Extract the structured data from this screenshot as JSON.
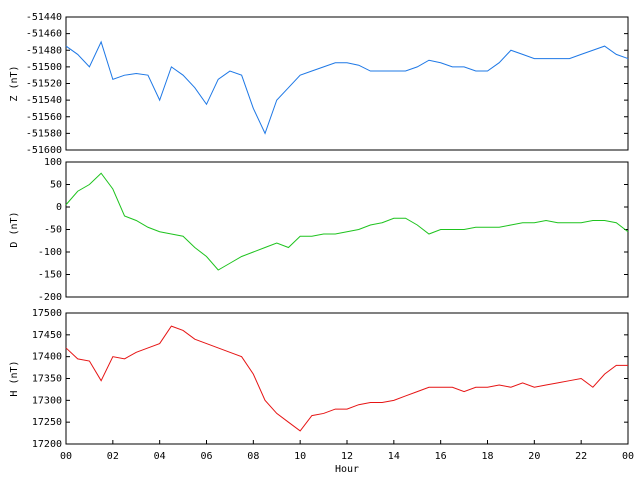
{
  "chart_data": [
    {
      "type": "line",
      "ylabel": "Z (nT)",
      "color": "#1e78e6",
      "xlim": [
        0,
        24
      ],
      "x": [
        0,
        0.5,
        1,
        1.5,
        2,
        2.5,
        3,
        3.5,
        4,
        4.5,
        5,
        5.5,
        6,
        6.5,
        7,
        7.5,
        8,
        8.5,
        9,
        9.5,
        10,
        10.5,
        11,
        11.5,
        12,
        12.5,
        13,
        13.5,
        14,
        14.5,
        15,
        15.5,
        16,
        16.5,
        17,
        17.5,
        18,
        18.5,
        19,
        19.5,
        20,
        20.5,
        21,
        21.5,
        22,
        22.5,
        23,
        23.5,
        24
      ],
      "values": [
        -51475,
        -51485,
        -51500,
        -51470,
        -51515,
        -51510,
        -51508,
        -51510,
        -51540,
        -51500,
        -51510,
        -51525,
        -51545,
        -51515,
        -51505,
        -51510,
        -51550,
        -51580,
        -51540,
        -51525,
        -51510,
        -51505,
        -51500,
        -51495,
        -51495,
        -51498,
        -51505,
        -51505,
        -51505,
        -51505,
        -51500,
        -51492,
        -51495,
        -51500,
        -51500,
        -51505,
        -51505,
        -51495,
        -51480,
        -51485,
        -51490,
        -51490,
        -51490,
        -51490,
        -51485,
        -51480,
        -51475,
        -51485,
        -51490
      ],
      "ylim": [
        -51600,
        -51440
      ],
      "yticks": [
        -51600,
        -51580,
        -51560,
        -51540,
        -51520,
        -51500,
        -51480,
        -51460,
        -51440
      ]
    },
    {
      "type": "line",
      "ylabel": "D (nT)",
      "color": "#1ec31e",
      "xlim": [
        0,
        24
      ],
      "x": [
        0,
        0.5,
        1,
        1.5,
        2,
        2.5,
        3,
        3.5,
        4,
        4.5,
        5,
        5.5,
        6,
        6.5,
        7,
        7.5,
        8,
        8.5,
        9,
        9.5,
        10,
        10.5,
        11,
        11.5,
        12,
        12.5,
        13,
        13.5,
        14,
        14.5,
        15,
        15.5,
        16,
        16.5,
        17,
        17.5,
        18,
        18.5,
        19,
        19.5,
        20,
        20.5,
        21,
        21.5,
        22,
        22.5,
        23,
        23.5,
        24
      ],
      "values": [
        5,
        35,
        50,
        75,
        40,
        -20,
        -30,
        -45,
        -55,
        -60,
        -65,
        -90,
        -110,
        -140,
        -125,
        -110,
        -100,
        -90,
        -80,
        -90,
        -65,
        -65,
        -60,
        -60,
        -55,
        -50,
        -40,
        -35,
        -25,
        -25,
        -40,
        -60,
        -50,
        -50,
        -50,
        -45,
        -45,
        -45,
        -40,
        -35,
        -35,
        -30,
        -35,
        -35,
        -35,
        -30,
        -30,
        -35,
        -55
      ],
      "ylim": [
        -200,
        100
      ],
      "yticks": [
        -200,
        -150,
        -100,
        -50,
        0,
        50,
        100
      ]
    },
    {
      "type": "line",
      "ylabel": "H (nT)",
      "xlabel": "Hour",
      "color": "#e61414",
      "xlim": [
        0,
        24
      ],
      "xticks": [
        {
          "value": 0,
          "label": "00"
        },
        {
          "value": 2,
          "label": "02"
        },
        {
          "value": 4,
          "label": "04"
        },
        {
          "value": 6,
          "label": "06"
        },
        {
          "value": 8,
          "label": "08"
        },
        10,
        12,
        14,
        16,
        18,
        20,
        22,
        {
          "value": 24,
          "label": "00"
        }
      ],
      "x": [
        0,
        0.5,
        1,
        1.5,
        2,
        2.5,
        3,
        3.5,
        4,
        4.5,
        5,
        5.5,
        6,
        6.5,
        7,
        7.5,
        8,
        8.5,
        9,
        9.5,
        10,
        10.5,
        11,
        11.5,
        12,
        12.5,
        13,
        13.5,
        14,
        14.5,
        15,
        15.5,
        16,
        16.5,
        17,
        17.5,
        18,
        18.5,
        19,
        19.5,
        20,
        20.5,
        21,
        21.5,
        22,
        22.5,
        23,
        23.5,
        24
      ],
      "values": [
        17420,
        17395,
        17390,
        17345,
        17400,
        17395,
        17410,
        17420,
        17430,
        17470,
        17460,
        17440,
        17430,
        17420,
        17410,
        17400,
        17360,
        17300,
        17270,
        17250,
        17230,
        17265,
        17270,
        17280,
        17280,
        17290,
        17295,
        17295,
        17300,
        17310,
        17320,
        17330,
        17330,
        17330,
        17320,
        17330,
        17330,
        17335,
        17330,
        17340,
        17330,
        17335,
        17340,
        17345,
        17350,
        17330,
        17360,
        17380,
        17380
      ],
      "ylim": [
        17200,
        17500
      ],
      "yticks": [
        17200,
        17250,
        17300,
        17350,
        17400,
        17450,
        17500
      ]
    }
  ]
}
